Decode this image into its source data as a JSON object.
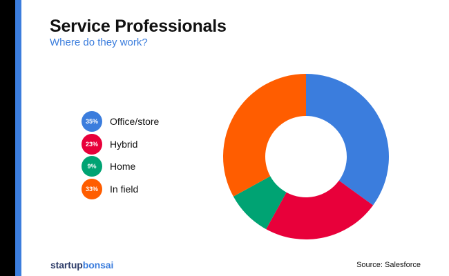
{
  "header": {
    "title": "Service Professionals",
    "subtitle": "Where do they work?"
  },
  "chart_data": {
    "type": "pie",
    "donut": true,
    "title": "Service Professionals",
    "subtitle": "Where do they work?",
    "legend_position": "left",
    "categories": [
      "Office/store",
      "Hybrid",
      "Home",
      "In field"
    ],
    "values": [
      35,
      23,
      9,
      33
    ],
    "value_labels": [
      "35%",
      "23%",
      "9%",
      "33%"
    ],
    "colors": [
      "#3b7ddd",
      "#e8003a",
      "#00a373",
      "#ff5d00"
    ]
  },
  "footer": {
    "brand_part1": "startup",
    "brand_part2": "bonsai",
    "source": "Source: Salesforce"
  },
  "colors": {
    "accent": "#3b7ddd",
    "sidebar": "#000000"
  }
}
